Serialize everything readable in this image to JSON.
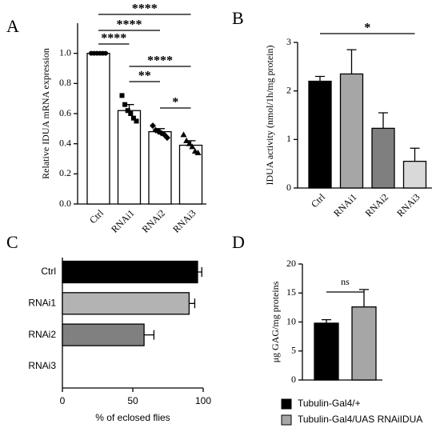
{
  "chart_data": [
    {
      "panel": "A",
      "type": "bar",
      "ylabel": "Relative IDUA mRNA expression",
      "categories": [
        "Ctrl",
        "RNAi1",
        "RNAi2",
        "RNAi3"
      ],
      "values": [
        1.0,
        0.62,
        0.48,
        0.39
      ],
      "errors": [
        0,
        0.04,
        0.02,
        0.03
      ],
      "colors": [
        "#ffffff",
        "#ffffff",
        "#ffffff",
        "#ffffff"
      ],
      "points": [
        [
          1.0,
          1.0,
          1.0,
          1.0,
          1.0,
          1.0
        ],
        [
          0.72,
          0.66,
          0.62,
          0.6,
          0.57,
          0.55
        ],
        [
          0.52,
          0.49,
          0.48,
          0.47,
          0.46,
          0.44
        ],
        [
          0.46,
          0.42,
          0.4,
          0.38,
          0.35,
          0.34
        ]
      ],
      "ylim": [
        0,
        1.2
      ],
      "yticks": [
        {
          "value": 0,
          "label": "0.0"
        },
        0.2,
        0.4,
        0.6,
        0.8,
        {
          "value": 1,
          "label": "1.0"
        }
      ],
      "annotations": [
        {
          "text": "****",
          "between": [
            "Ctrl",
            "RNAi3"
          ]
        },
        {
          "text": "****",
          "between": [
            "Ctrl",
            "RNAi2"
          ]
        },
        {
          "text": "****",
          "between": [
            "Ctrl",
            "RNAi1"
          ]
        },
        {
          "text": "****",
          "between": [
            "RNAi1",
            "RNAi3"
          ]
        },
        {
          "text": "**",
          "between": [
            "RNAi1",
            "RNAi2"
          ]
        },
        {
          "text": "*",
          "between": [
            "RNAi2",
            "RNAi3"
          ]
        }
      ]
    },
    {
      "panel": "B",
      "type": "bar",
      "ylabel": "IDUA activity (nmol/1h/mg protein)",
      "categories": [
        "Ctrl",
        "RNAi1",
        "RNAi2",
        "RNAi3"
      ],
      "values": [
        2.2,
        2.35,
        1.23,
        0.55
      ],
      "errors": [
        0.1,
        0.5,
        0.32,
        0.27
      ],
      "colors": [
        "#000000",
        "#a6a6a6",
        "#7f7f7f",
        "#d9d9d9"
      ],
      "ylim": [
        0,
        3
      ],
      "yticks": [
        0,
        1,
        2,
        3
      ],
      "annotations": [
        {
          "text": "*",
          "between": [
            "Ctrl",
            "RNAi3"
          ]
        }
      ]
    },
    {
      "panel": "C",
      "type": "barh",
      "xlabel": "% of eclosed flies",
      "categories": [
        "Ctrl",
        "RNAi1",
        "RNAi2",
        "RNAi3"
      ],
      "values": [
        96,
        90,
        58,
        0
      ],
      "errors": [
        3,
        4,
        7,
        0
      ],
      "colors": [
        "#000000",
        "#b3b3b3",
        "#808080",
        "#ffffff"
      ],
      "xlim": [
        0,
        100
      ],
      "xticks": [
        0,
        50,
        100
      ]
    },
    {
      "panel": "D",
      "type": "bar",
      "ylabel": "μg GAG/mg proteins",
      "series": [
        {
          "name": "Tubulin-Gal4/+",
          "color": "#000000",
          "values": [
            9.8
          ],
          "errors": [
            0.6
          ]
        },
        {
          "name": "Tubulin-Gal4/UAS RNAiIDUA",
          "color": "#a6a6a6",
          "values": [
            12.6
          ],
          "errors": [
            3.0
          ]
        }
      ],
      "ylim": [
        0,
        20
      ],
      "yticks": [
        0,
        5,
        10,
        15,
        20
      ],
      "annotations": [
        {
          "text": "ns",
          "between": [
            "Tubulin-Gal4/+",
            "Tubulin-Gal4/UAS RNAiIDUA"
          ]
        }
      ]
    }
  ]
}
